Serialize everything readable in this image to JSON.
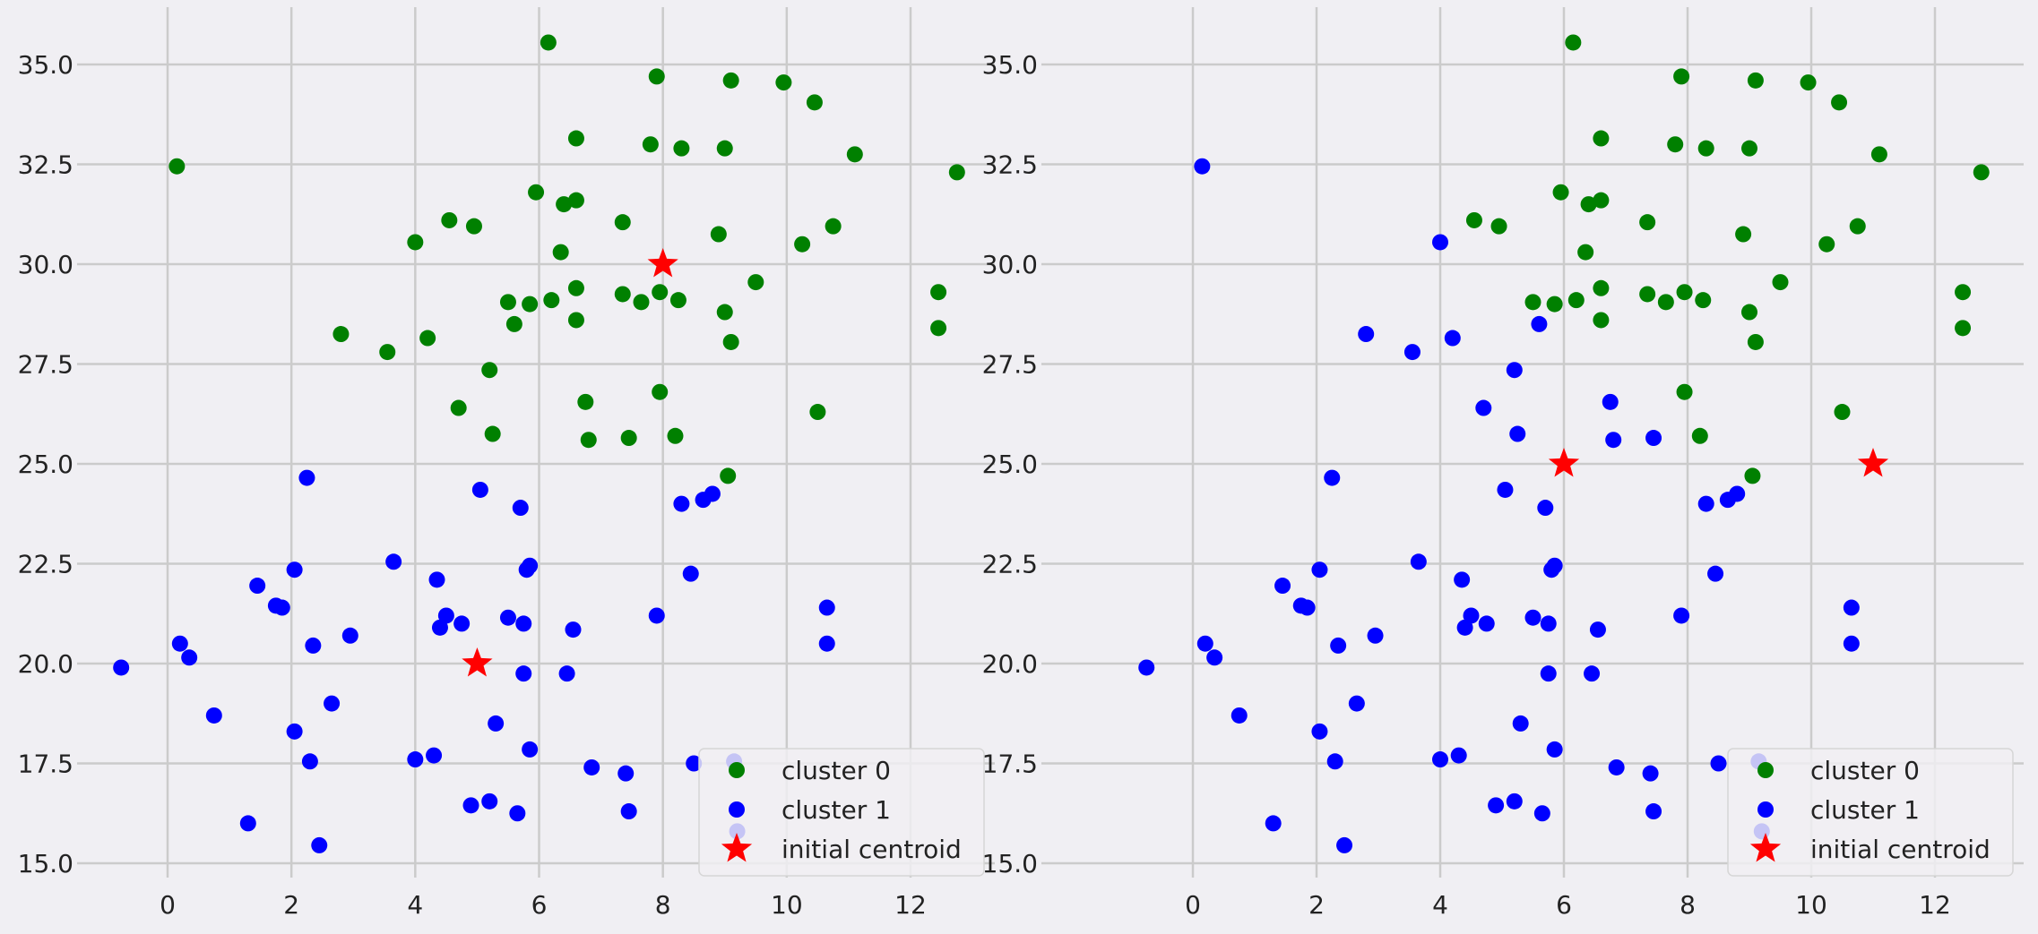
{
  "colors": {
    "background": "#f0eff3",
    "grid": "#cbcbcb",
    "cluster0": "#008000",
    "cluster1": "#0000ff",
    "centroid": "#ff0000",
    "text": "#222222"
  },
  "legend": {
    "cluster0_label": "cluster 0",
    "cluster1_label": "cluster 1",
    "centroid_label": "initial centroid",
    "placement": "lower-right"
  },
  "chart_data": [
    {
      "type": "scatter",
      "xlim": [
        -1.5,
        13.5
      ],
      "ylim": [
        14.5,
        36.5
      ],
      "x_ticks": [
        0,
        2,
        4,
        6,
        8,
        10,
        12
      ],
      "y_ticks": [
        15.0,
        17.5,
        20.0,
        22.5,
        25.0,
        27.5,
        30.0,
        32.5,
        35.0
      ],
      "grid": true,
      "legend_placement": "lower-right",
      "centroids": [
        [
          5,
          20
        ],
        [
          8,
          30
        ]
      ],
      "cluster0": [
        [
          0.15,
          32.45
        ],
        [
          6.15,
          35.55
        ],
        [
          7.9,
          34.7
        ],
        [
          9.1,
          34.6
        ],
        [
          9.95,
          34.55
        ],
        [
          10.45,
          34.05
        ],
        [
          6.6,
          33.15
        ],
        [
          7.8,
          33.0
        ],
        [
          8.3,
          32.9
        ],
        [
          9.0,
          32.9
        ],
        [
          11.1,
          32.75
        ],
        [
          12.75,
          32.3
        ],
        [
          5.95,
          31.8
        ],
        [
          6.4,
          31.5
        ],
        [
          6.6,
          31.6
        ],
        [
          4.55,
          31.1
        ],
        [
          4.95,
          30.95
        ],
        [
          7.35,
          31.05
        ],
        [
          4.0,
          30.55
        ],
        [
          6.35,
          30.3
        ],
        [
          8.9,
          30.75
        ],
        [
          10.25,
          30.5
        ],
        [
          10.75,
          30.95
        ],
        [
          9.5,
          29.55
        ],
        [
          6.6,
          29.4
        ],
        [
          5.5,
          29.05
        ],
        [
          5.85,
          29.0
        ],
        [
          6.2,
          29.1
        ],
        [
          7.35,
          29.25
        ],
        [
          7.65,
          29.05
        ],
        [
          7.95,
          29.3
        ],
        [
          8.25,
          29.1
        ],
        [
          9.0,
          28.8
        ],
        [
          12.45,
          29.3
        ],
        [
          12.45,
          28.4
        ],
        [
          2.8,
          28.25
        ],
        [
          3.55,
          27.8
        ],
        [
          4.2,
          28.15
        ],
        [
          5.6,
          28.5
        ],
        [
          6.6,
          28.6
        ],
        [
          9.1,
          28.05
        ],
        [
          5.2,
          27.35
        ],
        [
          4.7,
          26.4
        ],
        [
          6.75,
          26.55
        ],
        [
          7.95,
          26.8
        ],
        [
          10.5,
          26.3
        ],
        [
          5.25,
          25.75
        ],
        [
          6.8,
          25.6
        ],
        [
          7.45,
          25.65
        ],
        [
          8.2,
          25.7
        ],
        [
          9.05,
          24.7
        ]
      ],
      "cluster1": [
        [
          2.25,
          24.65
        ],
        [
          5.05,
          24.35
        ],
        [
          5.7,
          23.9
        ],
        [
          8.3,
          24.0
        ],
        [
          8.65,
          24.1
        ],
        [
          8.8,
          24.25
        ],
        [
          3.65,
          22.55
        ],
        [
          5.8,
          22.35
        ],
        [
          5.85,
          22.45
        ],
        [
          2.05,
          22.35
        ],
        [
          1.45,
          21.95
        ],
        [
          4.35,
          22.1
        ],
        [
          8.45,
          22.25
        ],
        [
          1.75,
          21.45
        ],
        [
          1.85,
          21.4
        ],
        [
          4.5,
          21.2
        ],
        [
          5.5,
          21.15
        ],
        [
          5.75,
          21.0
        ],
        [
          4.75,
          21.0
        ],
        [
          4.4,
          20.9
        ],
        [
          6.55,
          20.85
        ],
        [
          7.9,
          21.2
        ],
        [
          10.65,
          21.4
        ],
        [
          2.95,
          20.7
        ],
        [
          2.35,
          20.45
        ],
        [
          0.2,
          20.5
        ],
        [
          0.35,
          20.15
        ],
        [
          10.65,
          20.5
        ],
        [
          -0.75,
          19.9
        ],
        [
          5.75,
          19.75
        ],
        [
          6.45,
          19.75
        ],
        [
          2.65,
          19.0
        ],
        [
          0.75,
          18.7
        ],
        [
          2.05,
          18.3
        ],
        [
          5.3,
          18.5
        ],
        [
          5.85,
          17.85
        ],
        [
          2.3,
          17.55
        ],
        [
          4.0,
          17.6
        ],
        [
          4.3,
          17.7
        ],
        [
          6.85,
          17.4
        ],
        [
          7.4,
          17.25
        ],
        [
          8.5,
          17.5
        ],
        [
          9.15,
          17.55
        ],
        [
          4.9,
          16.45
        ],
        [
          5.2,
          16.55
        ],
        [
          5.65,
          16.25
        ],
        [
          7.45,
          16.3
        ],
        [
          1.3,
          16.0
        ],
        [
          9.2,
          15.8
        ],
        [
          2.45,
          15.45
        ]
      ]
    },
    {
      "type": "scatter",
      "xlim": [
        -1.5,
        13.5
      ],
      "ylim": [
        14.5,
        36.5
      ],
      "x_ticks": [
        0,
        2,
        4,
        6,
        8,
        10,
        12
      ],
      "y_ticks": [
        15.0,
        17.5,
        20.0,
        22.5,
        25.0,
        27.5,
        30.0,
        32.5,
        35.0
      ],
      "grid": true,
      "legend_placement": "lower-right",
      "centroids": [
        [
          6,
          25
        ],
        [
          11,
          25
        ]
      ],
      "cluster0": [
        [
          6.15,
          35.55
        ],
        [
          7.9,
          34.7
        ],
        [
          9.1,
          34.6
        ],
        [
          9.95,
          34.55
        ],
        [
          10.45,
          34.05
        ],
        [
          6.6,
          33.15
        ],
        [
          7.8,
          33.0
        ],
        [
          8.3,
          32.9
        ],
        [
          9.0,
          32.9
        ],
        [
          11.1,
          32.75
        ],
        [
          12.75,
          32.3
        ],
        [
          5.95,
          31.8
        ],
        [
          6.4,
          31.5
        ],
        [
          6.6,
          31.6
        ],
        [
          4.55,
          31.1
        ],
        [
          4.95,
          30.95
        ],
        [
          7.35,
          31.05
        ],
        [
          6.35,
          30.3
        ],
        [
          8.9,
          30.75
        ],
        [
          10.25,
          30.5
        ],
        [
          10.75,
          30.95
        ],
        [
          9.5,
          29.55
        ],
        [
          6.6,
          29.4
        ],
        [
          5.5,
          29.05
        ],
        [
          5.85,
          29.0
        ],
        [
          6.2,
          29.1
        ],
        [
          7.35,
          29.25
        ],
        [
          7.65,
          29.05
        ],
        [
          7.95,
          29.3
        ],
        [
          8.25,
          29.1
        ],
        [
          9.0,
          28.8
        ],
        [
          12.45,
          29.3
        ],
        [
          12.45,
          28.4
        ],
        [
          6.6,
          28.6
        ],
        [
          9.1,
          28.05
        ],
        [
          7.95,
          26.8
        ],
        [
          10.5,
          26.3
        ],
        [
          8.2,
          25.7
        ],
        [
          9.05,
          24.7
        ]
      ],
      "cluster1": [
        [
          0.15,
          32.45
        ],
        [
          4.0,
          30.55
        ],
        [
          2.8,
          28.25
        ],
        [
          3.55,
          27.8
        ],
        [
          4.2,
          28.15
        ],
        [
          5.6,
          28.5
        ],
        [
          5.2,
          27.35
        ],
        [
          4.7,
          26.4
        ],
        [
          6.75,
          26.55
        ],
        [
          5.25,
          25.75
        ],
        [
          6.8,
          25.6
        ],
        [
          7.45,
          25.65
        ],
        [
          2.25,
          24.65
        ],
        [
          5.05,
          24.35
        ],
        [
          5.7,
          23.9
        ],
        [
          8.3,
          24.0
        ],
        [
          8.65,
          24.1
        ],
        [
          8.8,
          24.25
        ],
        [
          3.65,
          22.55
        ],
        [
          5.8,
          22.35
        ],
        [
          5.85,
          22.45
        ],
        [
          2.05,
          22.35
        ],
        [
          1.45,
          21.95
        ],
        [
          4.35,
          22.1
        ],
        [
          8.45,
          22.25
        ],
        [
          1.75,
          21.45
        ],
        [
          1.85,
          21.4
        ],
        [
          4.5,
          21.2
        ],
        [
          5.5,
          21.15
        ],
        [
          5.75,
          21.0
        ],
        [
          4.75,
          21.0
        ],
        [
          4.4,
          20.9
        ],
        [
          6.55,
          20.85
        ],
        [
          7.9,
          21.2
        ],
        [
          10.65,
          21.4
        ],
        [
          2.95,
          20.7
        ],
        [
          2.35,
          20.45
        ],
        [
          0.2,
          20.5
        ],
        [
          0.35,
          20.15
        ],
        [
          10.65,
          20.5
        ],
        [
          -0.75,
          19.9
        ],
        [
          5.75,
          19.75
        ],
        [
          6.45,
          19.75
        ],
        [
          2.65,
          19.0
        ],
        [
          0.75,
          18.7
        ],
        [
          2.05,
          18.3
        ],
        [
          5.3,
          18.5
        ],
        [
          5.85,
          17.85
        ],
        [
          2.3,
          17.55
        ],
        [
          4.0,
          17.6
        ],
        [
          4.3,
          17.7
        ],
        [
          6.85,
          17.4
        ],
        [
          7.4,
          17.25
        ],
        [
          8.5,
          17.5
        ],
        [
          9.15,
          17.55
        ],
        [
          4.9,
          16.45
        ],
        [
          5.2,
          16.55
        ],
        [
          5.65,
          16.25
        ],
        [
          7.45,
          16.3
        ],
        [
          1.3,
          16.0
        ],
        [
          9.2,
          15.8
        ],
        [
          2.45,
          15.45
        ]
      ]
    }
  ]
}
